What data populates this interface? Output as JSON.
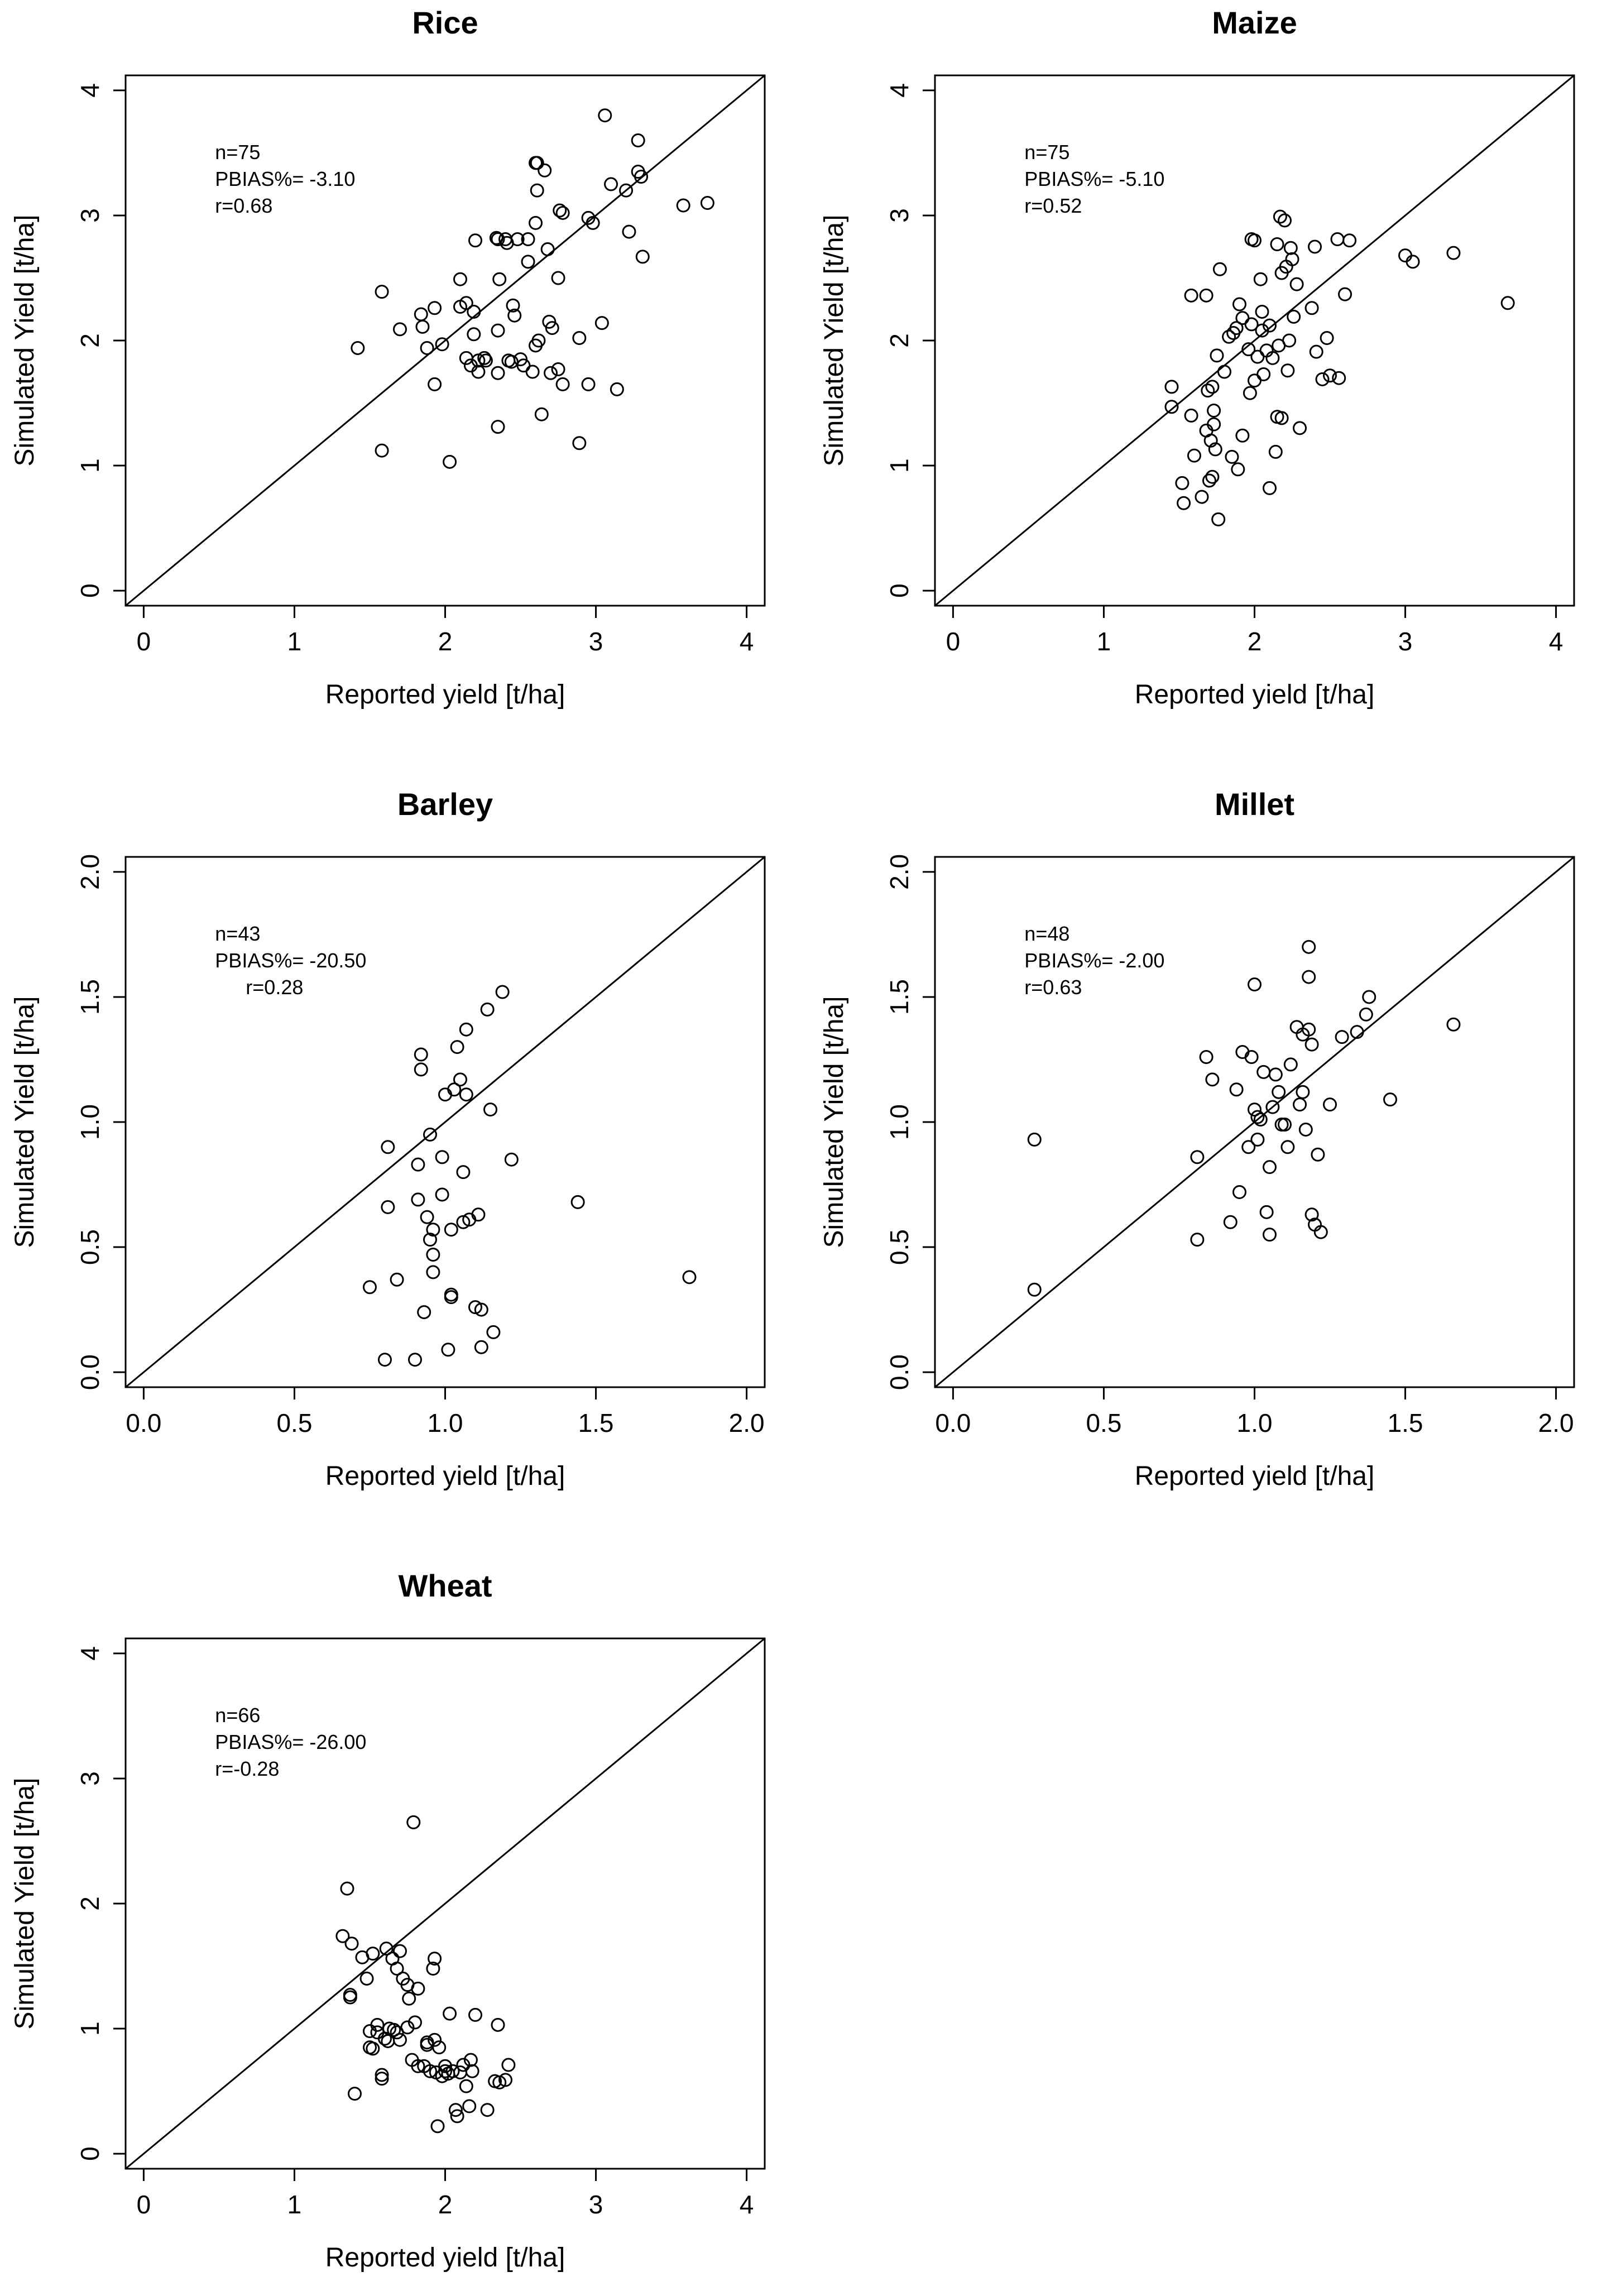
{
  "chart_data": [
    {
      "type": "scatter",
      "title": "Rice",
      "xlabel": "Reported yield [t/ha]",
      "ylabel": "Simulated Yield  [t/ha]",
      "xlim": [
        -0.12,
        4.12
      ],
      "ylim": [
        -0.12,
        4.12
      ],
      "xticks": [
        "0",
        "1",
        "2",
        "3",
        "4"
      ],
      "yticks": [
        "0",
        "1",
        "2",
        "3",
        "4"
      ],
      "reference_line": "1:1",
      "stats": [
        "n=75",
        "PBIAS%= -3.10",
        "r=0.68"
      ],
      "points": [
        [
          1.42,
          1.94
        ],
        [
          1.58,
          1.12
        ],
        [
          1.58,
          2.39
        ],
        [
          1.7,
          2.09
        ],
        [
          1.84,
          2.21
        ],
        [
          1.85,
          2.11
        ],
        [
          1.88,
          1.94
        ],
        [
          1.93,
          2.26
        ],
        [
          1.93,
          1.65
        ],
        [
          1.98,
          1.97
        ],
        [
          2.03,
          1.03
        ],
        [
          2.1,
          2.49
        ],
        [
          2.1,
          2.27
        ],
        [
          2.14,
          2.3
        ],
        [
          2.14,
          1.86
        ],
        [
          2.17,
          1.8
        ],
        [
          2.19,
          2.23
        ],
        [
          2.19,
          2.05
        ],
        [
          2.2,
          2.8
        ],
        [
          2.22,
          1.84
        ],
        [
          2.22,
          1.75
        ],
        [
          2.27,
          1.84
        ],
        [
          2.34,
          2.82
        ],
        [
          2.35,
          1.74
        ],
        [
          2.35,
          1.31
        ],
        [
          2.35,
          2.08
        ],
        [
          2.36,
          2.49
        ],
        [
          2.4,
          2.81
        ],
        [
          2.41,
          2.78
        ],
        [
          2.42,
          1.84
        ],
        [
          2.44,
          1.83
        ],
        [
          2.46,
          2.2
        ],
        [
          2.48,
          2.81
        ],
        [
          2.5,
          1.85
        ],
        [
          2.52,
          1.8
        ],
        [
          2.55,
          2.81
        ],
        [
          2.55,
          2.63
        ],
        [
          2.58,
          1.75
        ],
        [
          2.6,
          1.96
        ],
        [
          2.61,
          3.2
        ],
        [
          2.61,
          3.42
        ],
        [
          2.62,
          2.0
        ],
        [
          2.64,
          1.41
        ],
        [
          2.66,
          3.36
        ],
        [
          2.68,
          2.73
        ],
        [
          2.69,
          2.15
        ],
        [
          2.7,
          1.74
        ],
        [
          2.71,
          2.1
        ],
        [
          2.75,
          2.5
        ],
        [
          2.76,
          3.04
        ],
        [
          2.78,
          3.02
        ],
        [
          2.78,
          1.65
        ],
        [
          2.89,
          2.02
        ],
        [
          2.89,
          1.18
        ],
        [
          2.95,
          2.98
        ],
        [
          2.98,
          2.94
        ],
        [
          3.04,
          2.14
        ],
        [
          3.06,
          3.8
        ],
        [
          3.1,
          3.25
        ],
        [
          3.14,
          1.61
        ],
        [
          3.2,
          3.2
        ],
        [
          3.22,
          2.87
        ],
        [
          3.28,
          3.6
        ],
        [
          3.28,
          3.35
        ],
        [
          3.3,
          3.31
        ],
        [
          3.31,
          2.67
        ],
        [
          3.58,
          3.08
        ],
        [
          3.74,
          3.1
        ],
        [
          2.6,
          3.42
        ],
        [
          2.35,
          2.81
        ],
        [
          2.6,
          2.94
        ],
        [
          2.26,
          1.86
        ],
        [
          2.75,
          1.77
        ],
        [
          2.95,
          1.65
        ],
        [
          2.45,
          2.28
        ]
      ]
    },
    {
      "type": "scatter",
      "title": "Maize",
      "xlabel": "Reported yield [t/ha]",
      "ylabel": "Simulated Yield  [t/ha]",
      "xlim": [
        -0.12,
        4.12
      ],
      "ylim": [
        -0.12,
        4.12
      ],
      "xticks": [
        "0",
        "1",
        "2",
        "3",
        "4"
      ],
      "yticks": [
        "0",
        "1",
        "2",
        "3",
        "4"
      ],
      "reference_line": "1:1",
      "stats": [
        "n=75",
        "PBIAS%= -5.10",
        "r=0.52"
      ],
      "points": [
        [
          1.45,
          1.63
        ],
        [
          1.45,
          1.47
        ],
        [
          1.52,
          0.86
        ],
        [
          1.53,
          0.7
        ],
        [
          1.58,
          1.4
        ],
        [
          1.58,
          2.36
        ],
        [
          1.6,
          1.08
        ],
        [
          1.65,
          0.75
        ],
        [
          1.68,
          1.28
        ],
        [
          1.68,
          2.36
        ],
        [
          1.69,
          1.6
        ],
        [
          1.7,
          0.88
        ],
        [
          1.71,
          1.2
        ],
        [
          1.72,
          0.91
        ],
        [
          1.72,
          1.63
        ],
        [
          1.73,
          1.44
        ],
        [
          1.73,
          1.33
        ],
        [
          1.74,
          1.13
        ],
        [
          1.75,
          1.88
        ],
        [
          1.76,
          0.57
        ],
        [
          1.77,
          2.57
        ],
        [
          1.8,
          1.75
        ],
        [
          1.85,
          1.07
        ],
        [
          1.86,
          2.06
        ],
        [
          1.88,
          2.1
        ],
        [
          1.89,
          0.97
        ],
        [
          1.9,
          2.29
        ],
        [
          1.92,
          1.24
        ],
        [
          1.92,
          2.18
        ],
        [
          1.97,
          1.58
        ],
        [
          1.98,
          2.81
        ],
        [
          1.98,
          2.13
        ],
        [
          2.0,
          2.8
        ],
        [
          2.0,
          1.68
        ],
        [
          2.02,
          1.87
        ],
        [
          2.04,
          2.49
        ],
        [
          2.05,
          2.08
        ],
        [
          2.06,
          1.73
        ],
        [
          2.08,
          1.92
        ],
        [
          2.1,
          0.82
        ],
        [
          2.12,
          1.86
        ],
        [
          2.14,
          1.11
        ],
        [
          2.15,
          2.77
        ],
        [
          2.15,
          1.39
        ],
        [
          2.16,
          1.96
        ],
        [
          2.17,
          2.99
        ],
        [
          2.18,
          1.38
        ],
        [
          2.2,
          2.96
        ],
        [
          2.21,
          2.59
        ],
        [
          2.22,
          1.76
        ],
        [
          2.23,
          2.0
        ],
        [
          2.24,
          2.74
        ],
        [
          2.25,
          2.65
        ],
        [
          2.26,
          2.19
        ],
        [
          2.28,
          2.45
        ],
        [
          2.3,
          1.3
        ],
        [
          2.38,
          2.26
        ],
        [
          2.4,
          2.75
        ],
        [
          2.41,
          1.91
        ],
        [
          2.45,
          1.69
        ],
        [
          2.48,
          2.02
        ],
        [
          2.5,
          1.72
        ],
        [
          2.55,
          2.81
        ],
        [
          2.56,
          1.7
        ],
        [
          2.6,
          2.37
        ],
        [
          2.63,
          2.8
        ],
        [
          3.0,
          2.68
        ],
        [
          3.05,
          2.63
        ],
        [
          3.32,
          2.7
        ],
        [
          3.68,
          2.3
        ],
        [
          2.1,
          2.12
        ],
        [
          1.96,
          1.93
        ],
        [
          2.18,
          2.54
        ],
        [
          1.83,
          2.03
        ],
        [
          2.05,
          2.23
        ]
      ]
    },
    {
      "type": "scatter",
      "title": "Barley",
      "xlabel": "Reported yield [t/ha]",
      "ylabel": "Simulated Yield  [t/ha]",
      "xlim": [
        -0.06,
        2.06
      ],
      "ylim": [
        -0.06,
        2.06
      ],
      "xticks": [
        "0.0",
        "0.5",
        "1.0",
        "1.5",
        "2.0"
      ],
      "yticks": [
        "0.0",
        "0.5",
        "1.0",
        "1.5",
        "2.0"
      ],
      "reference_line": "1:1",
      "stats": [
        "n=43",
        "PBIAS%= -20.50",
        "r=0.28"
      ],
      "points": [
        [
          0.75,
          0.34
        ],
        [
          0.8,
          0.05
        ],
        [
          0.81,
          0.66
        ],
        [
          0.81,
          0.9
        ],
        [
          0.84,
          0.37
        ],
        [
          0.9,
          0.05
        ],
        [
          0.91,
          0.69
        ],
        [
          0.91,
          0.83
        ],
        [
          0.92,
          1.27
        ],
        [
          0.92,
          1.21
        ],
        [
          0.93,
          0.24
        ],
        [
          0.94,
          0.62
        ],
        [
          0.95,
          0.53
        ],
        [
          0.95,
          0.95
        ],
        [
          0.96,
          0.57
        ],
        [
          0.96,
          0.47
        ],
        [
          0.96,
          0.4
        ],
        [
          0.99,
          0.71
        ],
        [
          0.99,
          0.86
        ],
        [
          1.0,
          1.11
        ],
        [
          1.01,
          0.09
        ],
        [
          1.02,
          0.57
        ],
        [
          1.02,
          0.31
        ],
        [
          1.02,
          0.3
        ],
        [
          1.03,
          1.13
        ],
        [
          1.04,
          1.3
        ],
        [
          1.05,
          1.17
        ],
        [
          1.06,
          0.8
        ],
        [
          1.06,
          0.6
        ],
        [
          1.07,
          1.11
        ],
        [
          1.07,
          1.37
        ],
        [
          1.08,
          0.61
        ],
        [
          1.1,
          0.26
        ],
        [
          1.11,
          0.63
        ],
        [
          1.12,
          0.1
        ],
        [
          1.12,
          0.25
        ],
        [
          1.14,
          1.45
        ],
        [
          1.15,
          1.05
        ],
        [
          1.16,
          0.16
        ],
        [
          1.19,
          1.52
        ],
        [
          1.22,
          0.85
        ],
        [
          1.44,
          0.68
        ],
        [
          1.81,
          0.38
        ]
      ]
    },
    {
      "type": "scatter",
      "title": "Millet",
      "xlabel": "Reported yield [t/ha]",
      "ylabel": "Simulated Yield  [t/ha]",
      "xlim": [
        -0.06,
        2.06
      ],
      "ylim": [
        -0.06,
        2.06
      ],
      "xticks": [
        "0.0",
        "0.5",
        "1.0",
        "1.5",
        "2.0"
      ],
      "yticks": [
        "0.0",
        "0.5",
        "1.0",
        "1.5",
        "2.0"
      ],
      "reference_line": "1:1",
      "stats": [
        "n=48",
        "PBIAS%= -2.00",
        "r=0.63"
      ],
      "points": [
        [
          0.27,
          0.93
        ],
        [
          0.27,
          0.33
        ],
        [
          0.81,
          0.86
        ],
        [
          0.81,
          0.53
        ],
        [
          0.84,
          1.26
        ],
        [
          0.86,
          1.17
        ],
        [
          0.92,
          0.6
        ],
        [
          0.94,
          1.13
        ],
        [
          0.95,
          0.72
        ],
        [
          0.96,
          1.28
        ],
        [
          0.98,
          0.9
        ],
        [
          0.99,
          1.26
        ],
        [
          1.0,
          1.05
        ],
        [
          1.0,
          1.55
        ],
        [
          1.01,
          1.02
        ],
        [
          1.01,
          0.93
        ],
        [
          1.02,
          1.01
        ],
        [
          1.03,
          1.2
        ],
        [
          1.04,
          0.64
        ],
        [
          1.05,
          0.82
        ],
        [
          1.05,
          0.55
        ],
        [
          1.06,
          1.06
        ],
        [
          1.07,
          1.19
        ],
        [
          1.08,
          1.12
        ],
        [
          1.09,
          0.99
        ],
        [
          1.1,
          0.99
        ],
        [
          1.11,
          0.9
        ],
        [
          1.12,
          1.23
        ],
        [
          1.14,
          1.38
        ],
        [
          1.15,
          1.07
        ],
        [
          1.16,
          1.35
        ],
        [
          1.17,
          0.97
        ],
        [
          1.18,
          1.7
        ],
        [
          1.18,
          1.58
        ],
        [
          1.18,
          1.37
        ],
        [
          1.19,
          0.63
        ],
        [
          1.2,
          0.59
        ],
        [
          1.21,
          0.87
        ],
        [
          1.22,
          0.56
        ],
        [
          1.25,
          1.07
        ],
        [
          1.29,
          1.34
        ],
        [
          1.34,
          1.36
        ],
        [
          1.37,
          1.43
        ],
        [
          1.38,
          1.5
        ],
        [
          1.45,
          1.09
        ],
        [
          1.66,
          1.39
        ],
        [
          1.19,
          1.31
        ],
        [
          1.16,
          1.12
        ]
      ]
    },
    {
      "type": "scatter",
      "title": "Wheat",
      "xlabel": "Reported yield [t/ha]",
      "ylabel": "Simulated Yield  [t/ha]",
      "xlim": [
        -0.12,
        4.12
      ],
      "ylim": [
        -0.12,
        4.12
      ],
      "xticks": [
        "0",
        "1",
        "2",
        "3",
        "4"
      ],
      "yticks": [
        "0",
        "1",
        "2",
        "3",
        "4"
      ],
      "reference_line": "1:1",
      "stats": [
        "n=66",
        "PBIAS%= -26.00",
        "r=-0.28"
      ],
      "points": [
        [
          1.32,
          1.74
        ],
        [
          1.35,
          2.12
        ],
        [
          1.37,
          1.27
        ],
        [
          1.38,
          1.68
        ],
        [
          1.4,
          0.48
        ],
        [
          1.45,
          1.57
        ],
        [
          1.48,
          1.4
        ],
        [
          1.5,
          0.98
        ],
        [
          1.5,
          0.85
        ],
        [
          1.52,
          1.6
        ],
        [
          1.55,
          1.03
        ],
        [
          1.55,
          0.97
        ],
        [
          1.58,
          0.63
        ],
        [
          1.58,
          0.6
        ],
        [
          1.61,
          1.64
        ],
        [
          1.62,
          0.9
        ],
        [
          1.63,
          1.0
        ],
        [
          1.65,
          1.56
        ],
        [
          1.66,
          0.99
        ],
        [
          1.68,
          1.48
        ],
        [
          1.68,
          0.97
        ],
        [
          1.7,
          1.62
        ],
        [
          1.7,
          0.91
        ],
        [
          1.72,
          1.4
        ],
        [
          1.75,
          1.35
        ],
        [
          1.76,
          1.24
        ],
        [
          1.78,
          0.75
        ],
        [
          1.79,
          2.65
        ],
        [
          1.8,
          1.05
        ],
        [
          1.82,
          1.32
        ],
        [
          1.82,
          0.7
        ],
        [
          1.86,
          0.7
        ],
        [
          1.88,
          0.87
        ],
        [
          1.9,
          0.66
        ],
        [
          1.92,
          1.48
        ],
        [
          1.93,
          1.56
        ],
        [
          1.93,
          0.91
        ],
        [
          1.94,
          0.65
        ],
        [
          1.95,
          0.22
        ],
        [
          1.96,
          0.85
        ],
        [
          1.98,
          0.62
        ],
        [
          2.0,
          0.7
        ],
        [
          2.02,
          0.64
        ],
        [
          2.03,
          1.12
        ],
        [
          2.05,
          0.66
        ],
        [
          2.07,
          0.35
        ],
        [
          2.08,
          0.3
        ],
        [
          2.1,
          0.65
        ],
        [
          2.12,
          0.71
        ],
        [
          2.14,
          0.54
        ],
        [
          2.16,
          0.38
        ],
        [
          2.17,
          0.75
        ],
        [
          2.18,
          0.66
        ],
        [
          2.2,
          1.11
        ],
        [
          2.28,
          0.35
        ],
        [
          2.33,
          0.58
        ],
        [
          2.35,
          1.03
        ],
        [
          2.36,
          0.57
        ],
        [
          2.4,
          0.59
        ],
        [
          2.42,
          0.71
        ],
        [
          1.6,
          0.92
        ],
        [
          1.88,
          0.89
        ],
        [
          2.0,
          0.66
        ],
        [
          1.75,
          1.01
        ],
        [
          1.52,
          0.84
        ],
        [
          1.37,
          1.25
        ]
      ]
    }
  ]
}
